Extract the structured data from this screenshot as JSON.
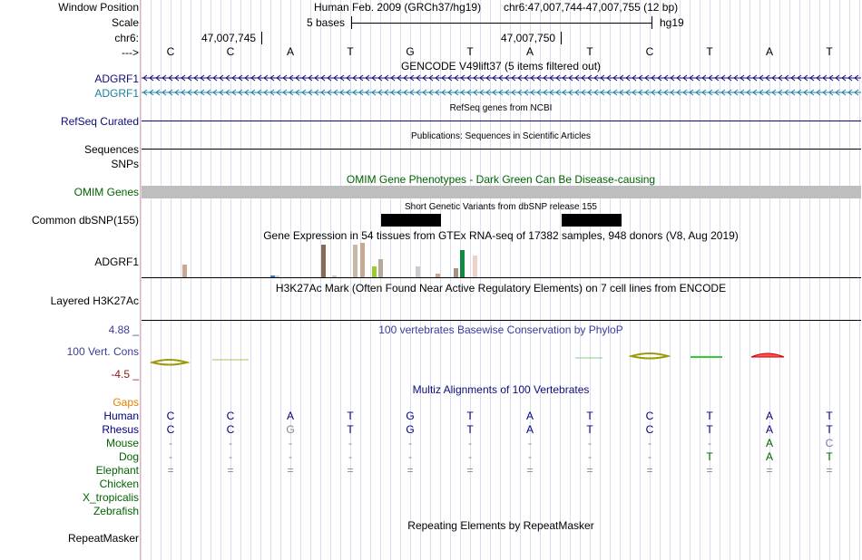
{
  "labels": {
    "window_position": "Window Position",
    "scale": "Scale",
    "chrom": "chr6:",
    "strand": "--->",
    "adgrf1_a": "ADGRF1",
    "adgrf1_b": "ADGRF1",
    "refseq": "RefSeq Curated",
    "sequences": "Sequences",
    "snps": "SNPs",
    "omim": "OMIM Genes",
    "dbsnp": "Common dbSNP(155)",
    "gtex_gene": "ADGRF1",
    "h3k27ac": "Layered H3K27Ac",
    "cons_max": "4.88 _",
    "cons_label": "100 Vert. Cons",
    "cons_min": "-4.5 _",
    "gaps": "Gaps",
    "repeatmasker": "RepeatMasker"
  },
  "header": {
    "assembly": "Human Feb. 2009 (GRCh37/hg19)",
    "position": "chr6:47,007,744-47,007,755 (12 bp)",
    "scale_text": "5 bases",
    "scale_db": "hg19",
    "coord1": "47,007,745",
    "coord2": "47,007,750"
  },
  "bases": [
    "C",
    "C",
    "A",
    "T",
    "G",
    "T",
    "A",
    "T",
    "C",
    "T",
    "A",
    "T"
  ],
  "tracks": {
    "gencode": "GENCODE V49lift37 (5 items filtered out)",
    "refseq_title": "RefSeq genes from NCBI",
    "pubs_title": "Publications: Sequences in Scientific Articles",
    "omim_title": "OMIM Gene Phenotypes - Dark Green Can Be Disease-causing",
    "dbsnp_title": "Short Genetic Variants from dbSNP release 155",
    "gtex_title": "Gene Expression in 54 tissues from GTEx RNA-seq of 17382 samples, 948 donors (V8, Aug 2019)",
    "h3k27ac_title": "H3K27Ac Mark (Often Found Near Active Regulatory Elements) on 7 cell lines from ENCODE",
    "phylop_title": "100 vertebrates Basewise Conservation by PhyloP",
    "multiz_title": "Multiz Alignments of 100 Vertebrates",
    "rmsk_title": "Repeating Elements by RepeatMasker"
  },
  "gtex_bars": [
    {
      "pos": 45,
      "h": 14,
      "color": "#c8a890"
    },
    {
      "pos": 142,
      "h": 2,
      "color": "#2a7fcf"
    },
    {
      "pos": 147,
      "h": 2,
      "color": "#e0d0c0"
    },
    {
      "pos": 198,
      "h": 36,
      "color": "#8a6a55"
    },
    {
      "pos": 210,
      "h": 2,
      "color": "#cccccc"
    },
    {
      "pos": 233,
      "h": 36,
      "color": "#c8b8a8"
    },
    {
      "pos": 241,
      "h": 38,
      "color": "#c8a890"
    },
    {
      "pos": 254,
      "h": 12,
      "color": "#99cc33"
    },
    {
      "pos": 261,
      "h": 20,
      "color": "#b8a898"
    },
    {
      "pos": 302,
      "h": 12,
      "color": "#cccccc"
    },
    {
      "pos": 324,
      "h": 4,
      "color": "#c8a890"
    },
    {
      "pos": 344,
      "h": 10,
      "color": "#a89080"
    },
    {
      "pos": 351,
      "h": 30,
      "color": "#118844"
    },
    {
      "pos": 365,
      "h": 24,
      "color": "#f0d0c8"
    }
  ],
  "dbsnp_blocks": [
    {
      "start": 265,
      "width": 66
    },
    {
      "start": 464,
      "width": 66
    }
  ],
  "species": [
    {
      "name": "Human",
      "color": "#000080",
      "bases": [
        "C",
        "C",
        "A",
        "T",
        "G",
        "T",
        "A",
        "T",
        "C",
        "T",
        "A",
        "T"
      ],
      "bcolor": "#000080"
    },
    {
      "name": "Rhesus",
      "color": "#000080",
      "bases": [
        "C",
        "C",
        "G",
        "T",
        "G",
        "T",
        "A",
        "T",
        "C",
        "T",
        "A",
        "T"
      ],
      "bcolor": "#000080"
    },
    {
      "name": "Mouse",
      "color": "#006400",
      "bases": [
        "-",
        "-",
        "-",
        "-",
        "-",
        "-",
        "-",
        "-",
        "-",
        "-",
        "A",
        "C"
      ],
      "bcolor": "#888888"
    },
    {
      "name": "Dog",
      "color": "#006400",
      "bases": [
        "-",
        "-",
        "-",
        "-",
        "-",
        "-",
        "-",
        "-",
        "-",
        "T",
        "A",
        "T"
      ],
      "bcolor": "#888888"
    },
    {
      "name": "Elephant",
      "color": "#006400",
      "bases": [
        "=",
        "=",
        "=",
        "=",
        "=",
        "=",
        "=",
        "=",
        "=",
        "=",
        "=",
        "="
      ],
      "bcolor": "#888888"
    },
    {
      "name": "Chicken",
      "color": "#006400",
      "bases": [],
      "bcolor": "#888888"
    },
    {
      "name": "X_tropicalis",
      "color": "#006400",
      "bases": [],
      "bcolor": "#888888"
    },
    {
      "name": "Zebrafish",
      "color": "#006400",
      "bases": [],
      "bcolor": "#888888"
    }
  ],
  "colors": {
    "gencode": "#0c0c78",
    "gencode_alt": "#1a7fa0",
    "omim_bar": "#bebebe",
    "omim_text": "#006400",
    "refseq": "#0c0c78",
    "cons": "#3c3c9b",
    "cons_min": "#8b1a1a",
    "gaps": "#e08000"
  }
}
